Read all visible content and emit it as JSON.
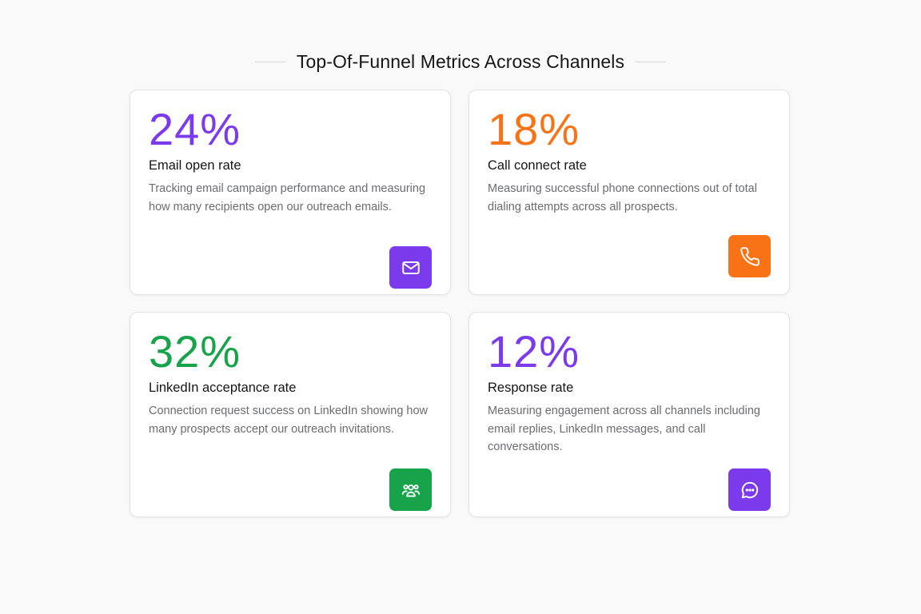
{
  "header": {
    "title": "Top-Of-Funnel Metrics Across Channels"
  },
  "colors": {
    "purple": "#7c3aed",
    "orange": "#f97316",
    "green": "#16a34a"
  },
  "cards": [
    {
      "value": "24%",
      "label": "Email open rate",
      "description": "Tracking email campaign performance and measuring how many recipients open our outreach emails.",
      "icon": "mail-icon",
      "color": "#7c3aed"
    },
    {
      "value": "18%",
      "label": "Call connect rate",
      "description": "Measuring successful phone connections out of total dialing attempts across all prospects.",
      "icon": "phone-icon",
      "color": "#f97316"
    },
    {
      "value": "32%",
      "label": "LinkedIn acceptance rate",
      "description": "Connection request success on LinkedIn showing how many prospects accept our outreach invitations.",
      "icon": "users-icon",
      "color": "#16a34a"
    },
    {
      "value": "12%",
      "label": "Response rate",
      "description": "Measuring engagement across all channels including email replies, LinkedIn messages, and call conversations.",
      "icon": "message-chat-icon",
      "color": "#7c3aed"
    }
  ]
}
